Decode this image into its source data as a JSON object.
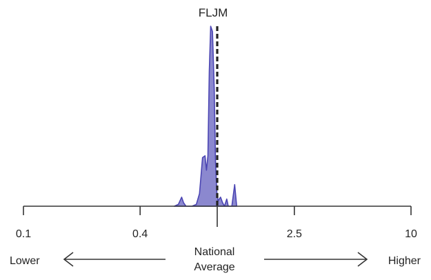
{
  "chart_data": {
    "type": "area",
    "title": "FLJM",
    "x_scale": "log",
    "xlim": [
      0.1,
      10
    ],
    "ticks": [
      {
        "value": 0.1,
        "label": "0.1"
      },
      {
        "value": 0.4,
        "label": "0.4"
      },
      {
        "value": 2.5,
        "label": "2.5"
      },
      {
        "value": 10,
        "label": "10"
      }
    ],
    "reference_value": 1.0,
    "reference_style": "dashed",
    "series": [
      {
        "color": "#4b45b3",
        "fill": "#8b88cf",
        "points": [
          [
            0.6,
            0.0
          ],
          [
            0.63,
            0.01
          ],
          [
            0.655,
            0.05
          ],
          [
            0.67,
            0.02
          ],
          [
            0.69,
            0.0
          ],
          [
            0.74,
            0.0
          ],
          [
            0.78,
            0.01
          ],
          [
            0.81,
            0.07
          ],
          [
            0.84,
            0.27
          ],
          [
            0.865,
            0.28
          ],
          [
            0.88,
            0.2
          ],
          [
            0.895,
            0.28
          ],
          [
            0.91,
            0.75
          ],
          [
            0.925,
            1.0
          ],
          [
            0.945,
            0.97
          ],
          [
            0.965,
            0.65
          ],
          [
            0.98,
            0.25
          ],
          [
            0.995,
            0.08
          ],
          [
            1.01,
            0.03
          ],
          [
            1.04,
            0.05
          ],
          [
            1.065,
            0.02
          ],
          [
            1.09,
            0.0
          ],
          [
            1.12,
            0.04
          ],
          [
            1.14,
            0.0
          ],
          [
            1.19,
            0.0
          ],
          [
            1.23,
            0.12
          ],
          [
            1.26,
            0.0
          ]
        ]
      }
    ],
    "annotations": {
      "left": "Lower",
      "center_line1": "National",
      "center_line2": "Average",
      "right": "Higher"
    }
  }
}
